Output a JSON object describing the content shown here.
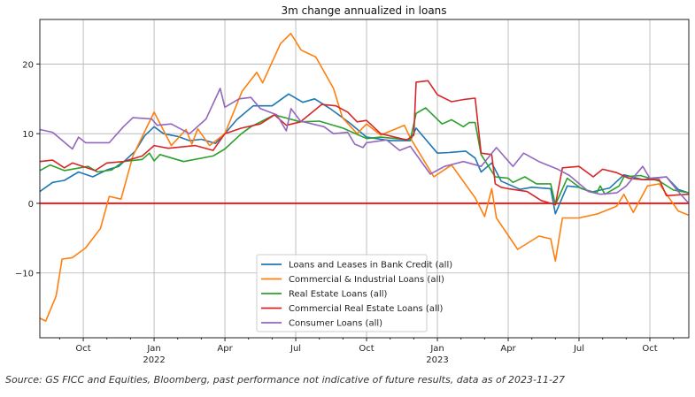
{
  "source_note": "Source: GS FICC and Equities, Bloomberg, past performance not indicative of future results, data as of 2023-11-27",
  "chart_data": {
    "type": "line",
    "title": "3m change annualized in loans",
    "xlabel": "",
    "ylabel": "",
    "x_unit": "months since Jan 2022",
    "xlim": [
      -4.84,
      22.65
    ],
    "ylim": [
      -19.3,
      26.4
    ],
    "grid": true,
    "legend_position": "lower-center",
    "x_ticks": [
      {
        "value": -3,
        "label": "Oct",
        "sub": ""
      },
      {
        "value": 0,
        "label": "Jan",
        "sub": "2022"
      },
      {
        "value": 3,
        "label": "Apr",
        "sub": ""
      },
      {
        "value": 6,
        "label": "Jul",
        "sub": ""
      },
      {
        "value": 9,
        "label": "Oct",
        "sub": ""
      },
      {
        "value": 12,
        "label": "Jan",
        "sub": "2023"
      },
      {
        "value": 15,
        "label": "Apr",
        "sub": ""
      },
      {
        "value": 18,
        "label": "Jul",
        "sub": ""
      },
      {
        "value": 21,
        "label": "Oct",
        "sub": ""
      }
    ],
    "y_ticks": [
      {
        "value": -10,
        "label": "−10"
      },
      {
        "value": 0,
        "label": "0"
      },
      {
        "value": 10,
        "label": "10"
      },
      {
        "value": 20,
        "label": "20"
      }
    ],
    "reference_line": {
      "value": 0,
      "color": "#ff0000"
    },
    "series": [
      {
        "name": "Loans and Leases in Bank Credit (all)",
        "color": "#1f77b4",
        "points": [
          [
            -4.84,
            1.7
          ],
          [
            -4.3,
            3
          ],
          [
            -3.8,
            3.3
          ],
          [
            -3.2,
            4.5
          ],
          [
            -2.6,
            3.8
          ],
          [
            -2,
            4.8
          ],
          [
            -1.5,
            5.3
          ],
          [
            -0.8,
            7.5
          ],
          [
            -0.4,
            9.7
          ],
          [
            0,
            11
          ],
          [
            0.4,
            10
          ],
          [
            1,
            9.6
          ],
          [
            1.5,
            9
          ],
          [
            2,
            9.2
          ],
          [
            2.6,
            8.6
          ],
          [
            3,
            10
          ],
          [
            3.5,
            12
          ],
          [
            4.2,
            14
          ],
          [
            5,
            14
          ],
          [
            5.7,
            15.7
          ],
          [
            6.3,
            14.5
          ],
          [
            6.8,
            15
          ],
          [
            7.5,
            13.5
          ],
          [
            8.3,
            11.5
          ],
          [
            9,
            9.5
          ],
          [
            10,
            9
          ],
          [
            10.85,
            9
          ],
          [
            11.1,
            10.8
          ],
          [
            12,
            7.2
          ],
          [
            12.5,
            7.3
          ],
          [
            13.2,
            7.5
          ],
          [
            13.6,
            6.5
          ],
          [
            13.85,
            4.5
          ],
          [
            14.3,
            5.8
          ],
          [
            14.7,
            3.2
          ],
          [
            15.5,
            2
          ],
          [
            16,
            2.3
          ],
          [
            16.8,
            2.1
          ],
          [
            17,
            -1.5
          ],
          [
            17.5,
            2.5
          ],
          [
            18,
            2.3
          ],
          [
            18.5,
            1.6
          ],
          [
            19.3,
            2.2
          ],
          [
            19.9,
            4.1
          ],
          [
            20.7,
            3.4
          ],
          [
            21.7,
            3.8
          ],
          [
            22.2,
            2
          ],
          [
            22.65,
            1.5
          ]
        ]
      },
      {
        "name": "Commercial & Industrial Loans (all)",
        "color": "#ff7f0e",
        "points": [
          [
            -4.84,
            -16.5
          ],
          [
            -4.59,
            -16.9
          ],
          [
            -4.15,
            -13.3
          ],
          [
            -3.9,
            -8
          ],
          [
            -3.46,
            -7.8
          ],
          [
            -2.9,
            -6.4
          ],
          [
            -2.27,
            -3.6
          ],
          [
            -1.9,
            1
          ],
          [
            -1.4,
            0.6
          ],
          [
            -0.9,
            6.8
          ],
          [
            0,
            13.1
          ],
          [
            0.73,
            8.3
          ],
          [
            1.35,
            10.6
          ],
          [
            1.6,
            8.5
          ],
          [
            1.85,
            10.7
          ],
          [
            2.35,
            8.3
          ],
          [
            3,
            10
          ],
          [
            3.73,
            16.1
          ],
          [
            4.35,
            18.8
          ],
          [
            4.6,
            17.3
          ],
          [
            5.35,
            22.9
          ],
          [
            5.79,
            24.4
          ],
          [
            6.23,
            22
          ],
          [
            6.85,
            21
          ],
          [
            7.6,
            16.5
          ],
          [
            7.98,
            12.3
          ],
          [
            8.6,
            10
          ],
          [
            9,
            11.4
          ],
          [
            9.6,
            9.8
          ],
          [
            10.6,
            11.2
          ],
          [
            10.85,
            9.4
          ],
          [
            11.85,
            3.8
          ],
          [
            12.6,
            5.5
          ],
          [
            13.6,
            0.8
          ],
          [
            14,
            -1.9
          ],
          [
            14.3,
            2.1
          ],
          [
            14.5,
            -2.1
          ],
          [
            15.4,
            -6.6
          ],
          [
            16.3,
            -4.7
          ],
          [
            16.8,
            -5.1
          ],
          [
            17,
            -8.3
          ],
          [
            17.3,
            -2.1
          ],
          [
            18,
            -2.1
          ],
          [
            18.8,
            -1.5
          ],
          [
            19.6,
            -0.4
          ],
          [
            19.9,
            1.3
          ],
          [
            20.3,
            -1.3
          ],
          [
            20.9,
            2.5
          ],
          [
            21.4,
            2.8
          ],
          [
            22.2,
            -1.1
          ],
          [
            22.65,
            -1.7
          ]
        ]
      },
      {
        "name": "Real Estate Loans (all)",
        "color": "#2ca02c",
        "points": [
          [
            -4.84,
            4.7
          ],
          [
            -4.4,
            5.5
          ],
          [
            -3.8,
            4.7
          ],
          [
            -2.8,
            5.3
          ],
          [
            -2.4,
            4.5
          ],
          [
            -1.8,
            4.8
          ],
          [
            -1.3,
            6
          ],
          [
            -0.5,
            6.3
          ],
          [
            -0.2,
            7.2
          ],
          [
            0,
            6.1
          ],
          [
            0.25,
            7
          ],
          [
            1.25,
            6
          ],
          [
            2.5,
            6.8
          ],
          [
            3,
            7.8
          ],
          [
            3.7,
            10
          ],
          [
            4.1,
            11
          ],
          [
            5.1,
            12.7
          ],
          [
            6.2,
            11.7
          ],
          [
            7,
            11.8
          ],
          [
            8,
            10.8
          ],
          [
            9,
            9.3
          ],
          [
            9.6,
            9.5
          ],
          [
            10.85,
            9.1
          ],
          [
            11.1,
            12.9
          ],
          [
            11.5,
            13.7
          ],
          [
            12.2,
            11.4
          ],
          [
            12.6,
            12
          ],
          [
            13.1,
            11
          ],
          [
            13.35,
            11.6
          ],
          [
            13.6,
            11.6
          ],
          [
            13.85,
            7
          ],
          [
            14.45,
            3.8
          ],
          [
            15,
            3.6
          ],
          [
            15.2,
            3
          ],
          [
            15.7,
            3.8
          ],
          [
            16.2,
            2.8
          ],
          [
            16.8,
            2.8
          ],
          [
            17,
            -0.2
          ],
          [
            17.5,
            3.6
          ],
          [
            18.1,
            2.1
          ],
          [
            18.75,
            1.5
          ],
          [
            18.9,
            2.5
          ],
          [
            19.1,
            1.3
          ],
          [
            19.7,
            2.5
          ],
          [
            19.9,
            3.8
          ],
          [
            20.6,
            4
          ],
          [
            21.4,
            3.2
          ],
          [
            22,
            1.9
          ],
          [
            22.65,
            1.5
          ]
        ]
      },
      {
        "name": "Commercial Real Estate Loans (all)",
        "color": "#d62728",
        "points": [
          [
            -4.84,
            6
          ],
          [
            -4.3,
            6.2
          ],
          [
            -3.8,
            5.1
          ],
          [
            -3.46,
            5.8
          ],
          [
            -2.5,
            4.7
          ],
          [
            -2,
            5.8
          ],
          [
            -1.3,
            6
          ],
          [
            -0.5,
            6.8
          ],
          [
            0,
            8.3
          ],
          [
            0.6,
            7.9
          ],
          [
            1.75,
            8.3
          ],
          [
            2.5,
            7.6
          ],
          [
            3,
            10
          ],
          [
            3.7,
            10.8
          ],
          [
            4.5,
            11.4
          ],
          [
            5.1,
            12.7
          ],
          [
            5.6,
            11.2
          ],
          [
            6.2,
            11.7
          ],
          [
            7.1,
            14.2
          ],
          [
            7.7,
            14
          ],
          [
            8.2,
            13.1
          ],
          [
            8.6,
            11.7
          ],
          [
            9,
            11.9
          ],
          [
            9.6,
            10
          ],
          [
            10.7,
            9.1
          ],
          [
            11,
            9.8
          ],
          [
            11.1,
            17.4
          ],
          [
            11.6,
            17.6
          ],
          [
            12,
            15.6
          ],
          [
            12.6,
            14.6
          ],
          [
            13.1,
            14.9
          ],
          [
            13.6,
            15.1
          ],
          [
            13.85,
            7.2
          ],
          [
            14.3,
            7
          ],
          [
            14.45,
            2.8
          ],
          [
            14.7,
            2.3
          ],
          [
            15,
            2.1
          ],
          [
            15.8,
            1.7
          ],
          [
            16.4,
            0.4
          ],
          [
            17,
            -0.2
          ],
          [
            17.3,
            5.1
          ],
          [
            18,
            5.3
          ],
          [
            18.6,
            3.8
          ],
          [
            19,
            4.9
          ],
          [
            19.6,
            4.4
          ],
          [
            20.1,
            3.6
          ],
          [
            20.7,
            3.4
          ],
          [
            21.4,
            3.4
          ],
          [
            21.7,
            1.1
          ],
          [
            22.65,
            1.3
          ]
        ]
      },
      {
        "name": "Consumer Loans (all)",
        "color": "#9467bd",
        "points": [
          [
            -4.84,
            10.6
          ],
          [
            -4.3,
            10.2
          ],
          [
            -3.46,
            7.8
          ],
          [
            -3.2,
            9.5
          ],
          [
            -2.9,
            8.7
          ],
          [
            -1.9,
            8.7
          ],
          [
            -1.3,
            11
          ],
          [
            -0.9,
            12.3
          ],
          [
            -0.1,
            12.1
          ],
          [
            0.13,
            11.2
          ],
          [
            0.73,
            11.4
          ],
          [
            1.5,
            10
          ],
          [
            2.2,
            12.1
          ],
          [
            2.8,
            16.5
          ],
          [
            3,
            13.8
          ],
          [
            3.6,
            15
          ],
          [
            4.1,
            15.2
          ],
          [
            4.5,
            13.6
          ],
          [
            5.2,
            12.7
          ],
          [
            5.6,
            10.4
          ],
          [
            5.8,
            13.6
          ],
          [
            6.2,
            11.8
          ],
          [
            7.2,
            11
          ],
          [
            7.6,
            10
          ],
          [
            8.2,
            10.2
          ],
          [
            8.5,
            8.5
          ],
          [
            8.85,
            8
          ],
          [
            9,
            8.7
          ],
          [
            9.85,
            9.1
          ],
          [
            10.4,
            7.6
          ],
          [
            10.85,
            8.2
          ],
          [
            11.7,
            4.2
          ],
          [
            12.3,
            5.3
          ],
          [
            13.1,
            6
          ],
          [
            13.85,
            5.3
          ],
          [
            14.5,
            8
          ],
          [
            15.2,
            5.3
          ],
          [
            15.65,
            7.2
          ],
          [
            16.3,
            6
          ],
          [
            17.1,
            4.9
          ],
          [
            17.6,
            4
          ],
          [
            18.4,
            1.7
          ],
          [
            18.9,
            1.3
          ],
          [
            19.6,
            1.5
          ],
          [
            20,
            2.5
          ],
          [
            20.7,
            5.3
          ],
          [
            21,
            3.6
          ],
          [
            21.7,
            3.8
          ],
          [
            22.2,
            1.7
          ],
          [
            22.65,
            0
          ]
        ]
      }
    ]
  }
}
